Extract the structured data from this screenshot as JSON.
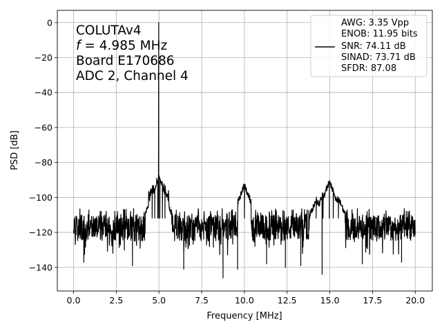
{
  "chart_data": {
    "type": "line",
    "xlabel": "Frequency [MHz]",
    "ylabel": "PSD [dB]",
    "xlim": [
      -0.95,
      21.0
    ],
    "ylim": [
      -153.5,
      7.0
    ],
    "grid": true,
    "x_ticks": [
      {
        "v": 0.0,
        "label": "0.0"
      },
      {
        "v": 2.5,
        "label": "2.5"
      },
      {
        "v": 5.0,
        "label": "5.0"
      },
      {
        "v": 7.5,
        "label": "7.5"
      },
      {
        "v": 10.0,
        "label": "10.0"
      },
      {
        "v": 12.5,
        "label": "12.5"
      },
      {
        "v": 15.0,
        "label": "15.0"
      },
      {
        "v": 17.5,
        "label": "17.5"
      },
      {
        "v": 20.0,
        "label": "20.0"
      }
    ],
    "y_ticks": [
      {
        "v": 0,
        "label": "0"
      },
      {
        "v": -20,
        "label": "−20"
      },
      {
        "v": -40,
        "label": "−40"
      },
      {
        "v": -60,
        "label": "−60"
      },
      {
        "v": -80,
        "label": "−80"
      },
      {
        "v": -100,
        "label": "−100"
      },
      {
        "v": -120,
        "label": "−120"
      },
      {
        "v": -140,
        "label": "−140"
      }
    ],
    "annotations": [
      {
        "text": "COLUTAv4",
        "italic_prefix": ""
      },
      {
        "text": " = 4.985 MHz",
        "italic_prefix": "f"
      },
      {
        "text": "Board E170686",
        "italic_prefix": ""
      },
      {
        "text": "ADC 2, Channel 4",
        "italic_prefix": ""
      }
    ],
    "legend_placement": "upper right",
    "legend_entries": [
      "AWG: 3.35 Vpp",
      "ENOB: 11.95 bits",
      "SNR: 74.11 dB",
      "SINAD: 73.71 dB",
      "SFDR: 87.08"
    ],
    "series": [
      {
        "color": "#000000",
        "noise_floor_db": [
          -110,
          -125
        ],
        "peaks": [
          {
            "x": 4.985,
            "y": 0.0
          },
          {
            "x": 4.93,
            "y": -92
          },
          {
            "x": 5.05,
            "y": -90
          },
          {
            "x": 4.75,
            "y": -98
          },
          {
            "x": 5.2,
            "y": -97
          },
          {
            "x": 4.6,
            "y": -100
          },
          {
            "x": 5.35,
            "y": -99
          },
          {
            "x": 10.0,
            "y": -93
          },
          {
            "x": 14.97,
            "y": -91
          },
          {
            "x": 14.6,
            "y": -98
          },
          {
            "x": 15.2,
            "y": -97
          },
          {
            "x": 14.2,
            "y": -101
          },
          {
            "x": 15.5,
            "y": -100
          }
        ],
        "dips": [
          {
            "x": 0.6,
            "y": -137
          },
          {
            "x": 3.45,
            "y": -139
          },
          {
            "x": 6.45,
            "y": -141
          },
          {
            "x": 8.75,
            "y": -146
          },
          {
            "x": 9.6,
            "y": -141
          },
          {
            "x": 11.3,
            "y": -138
          },
          {
            "x": 12.4,
            "y": -140
          },
          {
            "x": 13.3,
            "y": -139
          },
          {
            "x": 14.55,
            "y": -144
          },
          {
            "x": 16.9,
            "y": -138
          },
          {
            "x": 19.2,
            "y": -137
          }
        ],
        "x_range": [
          0.0,
          20.0
        ]
      }
    ]
  }
}
